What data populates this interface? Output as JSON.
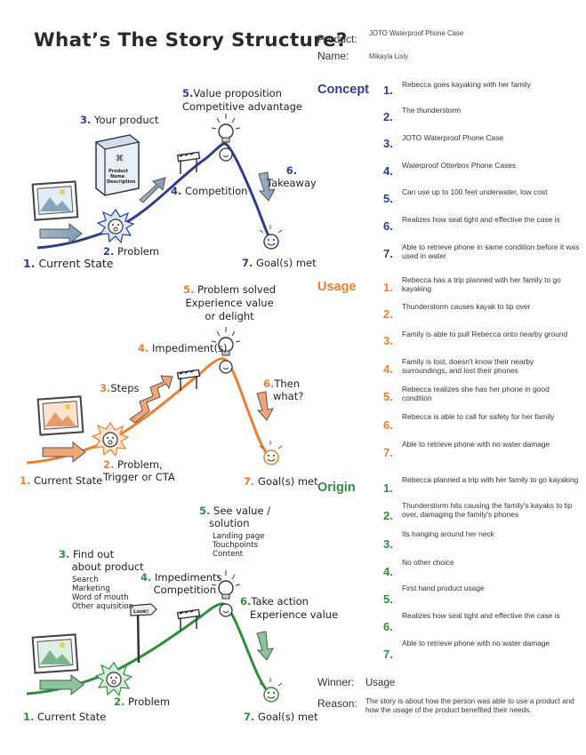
{
  "title": "What’s The Story Structure?",
  "header": {
    "product_label": "Product:",
    "product_value": "JOTO Waterproof Phone Case",
    "name_label": "Name:",
    "name_value": "Mikayla Lisiy"
  },
  "colors": {
    "concept": "#2f3d8f",
    "usage": "#ef7e2f",
    "origin": "#2f8f3e"
  },
  "diagrams": {
    "concept": {
      "current_state": "Current State",
      "problem": "Problem",
      "your_product": "Your product",
      "competition": "Competition",
      "value1": "Value proposition",
      "value2": "Competitive advantage",
      "takeaway": "Takeaway",
      "goals": "Goal(s) met",
      "box1": "Product",
      "box2": "Name",
      "box3": "Description"
    },
    "usage": {
      "current_state": "Current State",
      "problem1": "Problem,",
      "problem2": "Trigger or CTA",
      "steps": "Steps",
      "impediments": "Impediment(s)",
      "solved1": "Problem solved",
      "solved2": "Experience value",
      "solved3": "or delight",
      "then1": "Then",
      "then2": "what?",
      "goals": "Goal(s) met"
    },
    "origin": {
      "current_state": "Current State",
      "problem": "Problem",
      "find1": "Find out",
      "find2": "about product",
      "sources": [
        "Search",
        "Marketing",
        "Word of mouth",
        "Other aquisition"
      ],
      "sign": "Look!",
      "imp1": "Impediments",
      "imp2": "Competition",
      "see1": "See value /",
      "see2": "solution",
      "touch": [
        "Landing page",
        "Touchpoints",
        "Content"
      ],
      "take1": "Take action",
      "take2": "Experience value",
      "goals": "Goal(s) met"
    }
  },
  "sections": [
    {
      "name": "Concept",
      "items": [
        "Rebecca goes kayaking with her family",
        "The thunderstorm",
        "JOTO Waterproof Phone Case",
        "Waterproof Otterbox Phone Cases",
        "Can use up to 100 feet underwater, low cost",
        "Realizes how seal tight and effective the case is",
        "Able to retrieve phone in same condition before it was used in water"
      ]
    },
    {
      "name": "Usage",
      "items": [
        "Rebecca has a trip planned with her family to go kayaking",
        "Thunderstorm causes kayak to tip over",
        "Family is able to pull Rebecca onto nearby ground",
        "Family is lost, doesn't know their nearby surroundings, and lost their phones",
        "Rebecca realizes she has her phone in good condition",
        "Rebecca is able to call for safety for her family",
        "Able to retrieve phone with no water damage"
      ]
    },
    {
      "name": "Origin",
      "items": [
        "Rebecca planned a trip with her family to go kayaking",
        "Thunderstorm hits causing the family's kayaks to tip over, damaging the family's phones",
        "Its hanging around her neck",
        "No other choice",
        "First hand product usage",
        "Realizes how seal tight and effective the case is",
        "Able to retrieve phone with no water damage"
      ]
    }
  ],
  "winner_label": "Winner:",
  "winner_value": "Usage",
  "reason_label": "Reason:",
  "reason_value": "The story is about how the person was able to use a product and how the usage of the product benefited their needs."
}
